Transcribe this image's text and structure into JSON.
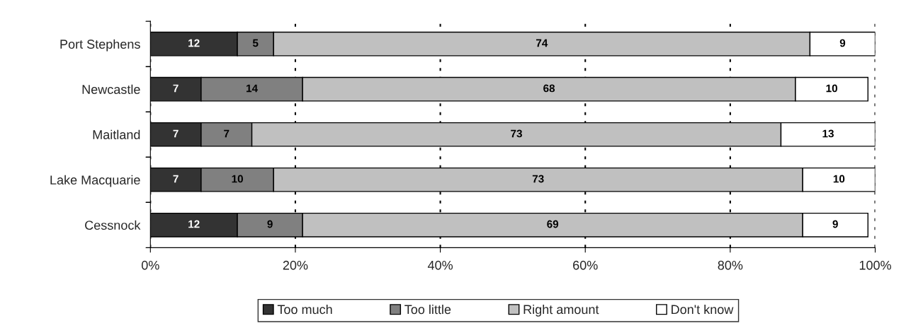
{
  "chart_data": {
    "type": "bar",
    "orientation": "horizontal",
    "stacked": true,
    "categories": [
      "Port Stephens",
      "Newcastle",
      "Maitland",
      "Lake Macquarie",
      "Cessnock"
    ],
    "series": [
      {
        "name": "Too much",
        "color": "#333333",
        "values": [
          12,
          7,
          7,
          7,
          12
        ]
      },
      {
        "name": "Too little",
        "color": "#808080",
        "values": [
          5,
          14,
          7,
          10,
          9
        ]
      },
      {
        "name": "Right amount",
        "color": "#c0c0c0",
        "values": [
          74,
          68,
          73,
          73,
          69
        ]
      },
      {
        "name": "Don't know",
        "color": "#ffffff",
        "values": [
          9,
          10,
          13,
          10,
          9
        ]
      }
    ],
    "xlim": [
      0,
      100
    ],
    "xticks": [
      {
        "value": 0,
        "label": "0%"
      },
      {
        "value": 20,
        "label": "20%"
      },
      {
        "value": 40,
        "label": "40%"
      },
      {
        "value": 60,
        "label": "60%"
      },
      {
        "value": 80,
        "label": "80%"
      },
      {
        "value": 100,
        "label": "100%"
      }
    ],
    "grid": "x",
    "legend": "bottom",
    "data_labels": true
  }
}
